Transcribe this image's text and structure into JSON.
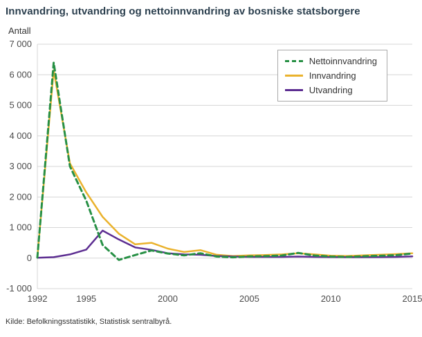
{
  "source": "Kilde: Befolkningsstatistikk, Statistisk sentralbyrå.",
  "chart_data": {
    "type": "line",
    "title": "Innvandring, utvandring og nettoinnvandring av bosniske statsborgere",
    "ylabel": "Antall",
    "xlabel": "",
    "grid": "horizontal",
    "legend_position": "top-right",
    "ylim": [
      -1000,
      7000
    ],
    "yticks": [
      7000,
      6000,
      5000,
      4000,
      3000,
      2000,
      1000,
      0,
      -1000
    ],
    "ytick_labels": [
      "7 000",
      "6 000",
      "5 000",
      "4 000",
      "3 000",
      "2 000",
      "1 000",
      "0",
      "-1 000"
    ],
    "x": [
      1992,
      1993,
      1994,
      1995,
      1996,
      1997,
      1998,
      1999,
      2000,
      2001,
      2002,
      2003,
      2004,
      2005,
      2006,
      2007,
      2008,
      2009,
      2010,
      2011,
      2012,
      2013,
      2014,
      2015
    ],
    "xticks": [
      1992,
      1995,
      2000,
      2005,
      2010,
      2015
    ],
    "series": [
      {
        "name": "Nettoinnvandring",
        "color": "#279045",
        "dash": true,
        "values": [
          20,
          6400,
          3000,
          1880,
          430,
          -60,
          100,
          250,
          150,
          90,
          160,
          50,
          25,
          55,
          65,
          85,
          170,
          85,
          50,
          40,
          60,
          75,
          95,
          150
        ]
      },
      {
        "name": "Innvandring",
        "color": "#eab22c",
        "dash": false,
        "values": [
          30,
          6150,
          3100,
          2150,
          1350,
          800,
          450,
          500,
          310,
          200,
          260,
          110,
          70,
          90,
          100,
          120,
          160,
          120,
          80,
          70,
          90,
          110,
          130,
          160
        ]
      },
      {
        "name": "Utvandring",
        "color": "#5c2d91",
        "dash": false,
        "values": [
          10,
          30,
          120,
          280,
          900,
          610,
          350,
          270,
          160,
          120,
          110,
          70,
          50,
          40,
          40,
          40,
          50,
          40,
          35,
          30,
          30,
          35,
          40,
          55
        ]
      }
    ]
  }
}
